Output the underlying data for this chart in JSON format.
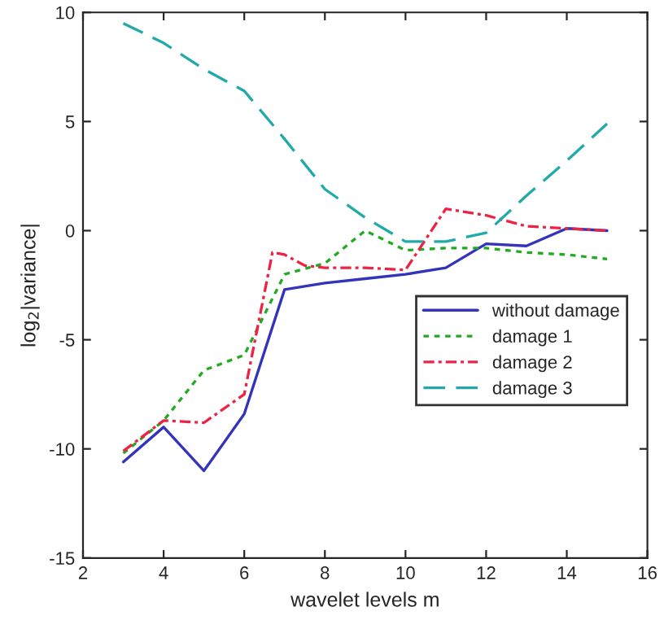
{
  "chart_data": {
    "type": "line",
    "xlabel": "wavelet levels m",
    "ylabel": "log$_{2}$|variance|",
    "xlim": [
      2,
      16
    ],
    "xticks": [
      2,
      4,
      6,
      8,
      10,
      12,
      14,
      16
    ],
    "ylim": [
      -15,
      10
    ],
    "yticks": [
      -15,
      -10,
      -5,
      0,
      5,
      10
    ],
    "grid": false,
    "legend": "right",
    "marker": "none",
    "series": [
      {
        "name": "without damage",
        "color": "#3333bb",
        "line_style": "solid",
        "x": [
          3,
          4,
          5,
          6,
          7,
          8,
          9,
          10,
          11,
          12,
          13,
          14,
          15
        ],
        "values": [
          -10.6,
          -9,
          -11,
          -8.4,
          -2.7,
          -2.4,
          -2.2,
          -2.0,
          -1.7,
          -0.6,
          -0.7,
          0.1,
          0.0
        ]
      },
      {
        "name": "damage 1",
        "color": "#22aa22",
        "line_style": "dotted",
        "x": [
          3,
          4,
          5,
          6,
          7,
          8,
          9,
          10,
          11,
          12,
          13,
          14,
          15
        ],
        "values": [
          -10.2,
          -8.7,
          -6.4,
          -5.7,
          -2.0,
          -1.5,
          0.0,
          -0.9,
          -0.8,
          -0.8,
          -1.0,
          -1.1,
          -1.3
        ]
      },
      {
        "name": "damage 2",
        "color": "#ee2244",
        "line_style": "dashdot",
        "x": [
          3,
          4,
          5,
          6,
          6.7,
          7,
          7.5,
          8,
          9,
          10,
          11,
          12,
          13,
          14,
          15
        ],
        "values": [
          -10.1,
          -8.7,
          -8.8,
          -7.5,
          -1.0,
          -1.1,
          -1.6,
          -1.7,
          -1.7,
          -1.8,
          1.0,
          0.7,
          0.2,
          0.1,
          0.0
        ]
      },
      {
        "name": "damage 3",
        "color": "#22aaaa",
        "line_style": "dashed",
        "x": [
          3,
          4,
          5,
          6,
          7,
          8,
          9,
          10,
          11,
          12,
          13,
          14,
          15
        ],
        "values": [
          9.5,
          8.6,
          7.4,
          6.4,
          4.2,
          1.9,
          0.6,
          -0.5,
          -0.5,
          -0.1,
          1.6,
          3.2,
          4.9
        ]
      }
    ]
  }
}
